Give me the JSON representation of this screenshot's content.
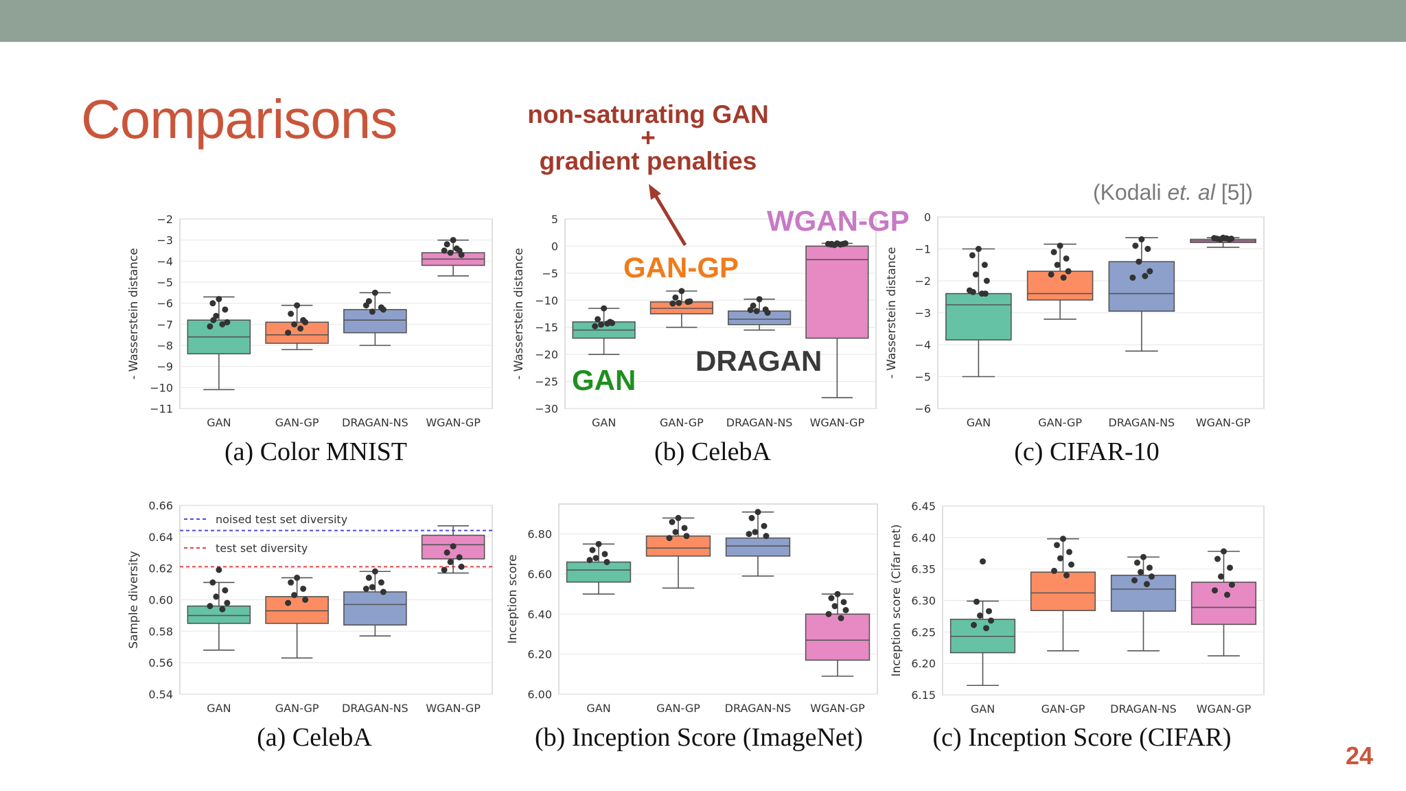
{
  "slide": {
    "title": "Comparisons",
    "citation": "(Kodali et. al [5])",
    "page_number": "24",
    "annotation_top_line1": "non-saturating GAN",
    "annotation_top_line2": "+",
    "annotation_top_line3": "gradient penalties",
    "label_gan_gp": "GAN-GP",
    "label_wgan_gp": "WGAN-GP",
    "label_dragan": "DRAGAN",
    "label_gan": "GAN",
    "colors": {
      "gan": "#66c2a5",
      "gan_gp": "#fc8d62",
      "dragan_ns": "#8da0cb",
      "wgan_gp": "#e78ac3",
      "title": "#c9553a",
      "arrow": "#a33a2c"
    }
  },
  "chart_data": [
    {
      "type": "box",
      "caption": "(a) Color MNIST",
      "ylabel": "- Wasserstein distance",
      "ylim": [
        -11,
        -2
      ],
      "yticks": [
        -2,
        -3,
        -4,
        -5,
        -6,
        -7,
        -8,
        -9,
        -10,
        -11
      ],
      "categories": [
        "GAN",
        "GAN-GP",
        "DRAGAN-NS",
        "WGAN-GP"
      ],
      "boxes": [
        {
          "min": -10.1,
          "q1": -8.4,
          "median": -7.6,
          "q3": -6.8,
          "max": -5.7,
          "points": [
            -5.8,
            -6.0,
            -6.3,
            -6.6,
            -6.9,
            -7.1,
            -7.0,
            -6.8
          ]
        },
        {
          "min": -8.2,
          "q1": -7.9,
          "median": -7.5,
          "q3": -6.9,
          "max": -6.1,
          "points": [
            -6.1,
            -6.5,
            -6.8,
            -7.0,
            -6.9,
            -7.4,
            -7.2
          ]
        },
        {
          "min": -8.0,
          "q1": -7.4,
          "median": -6.8,
          "q3": -6.3,
          "max": -5.5,
          "points": [
            -5.5,
            -5.9,
            -6.2,
            -6.4,
            -6.3,
            -6.1
          ]
        },
        {
          "min": -4.7,
          "q1": -4.2,
          "median": -3.9,
          "q3": -3.6,
          "max": -3.0,
          "points": [
            -3.0,
            -3.2,
            -3.5,
            -3.6,
            -3.7,
            -3.5,
            -3.4
          ]
        }
      ]
    },
    {
      "type": "box",
      "caption": "(b) CelebA",
      "ylabel": "- Wasserstein distance",
      "ylim": [
        -30,
        5
      ],
      "yticks": [
        5,
        0,
        -5,
        -10,
        -15,
        -20,
        -25,
        -30
      ],
      "categories": [
        "GAN",
        "GAN-GP",
        "DRAGAN-NS",
        "WGAN-GP"
      ],
      "boxes": [
        {
          "min": -20.0,
          "q1": -17.0,
          "median": -15.5,
          "q3": -14.0,
          "max": -11.5,
          "points": [
            -11.5,
            -13.5,
            -14.0,
            -14.5,
            -14.2,
            -14.8,
            -14.3
          ]
        },
        {
          "min": -15.0,
          "q1": -12.5,
          "median": -11.5,
          "q3": -10.3,
          "max": -8.3,
          "points": [
            -8.3,
            -9.5,
            -10.3,
            -10.5,
            -10.2,
            -10.6
          ]
        },
        {
          "min": -15.5,
          "q1": -14.5,
          "median": -13.5,
          "q3": -12.0,
          "max": -9.8,
          "points": [
            -9.8,
            -11.0,
            -11.7,
            -12.0,
            -12.3,
            -11.8
          ]
        },
        {
          "min": -28.0,
          "q1": -17.0,
          "median": -2.5,
          "q3": 0.0,
          "max": 0.5,
          "points": [
            0.5,
            0.3,
            0.4,
            0.2,
            0.5,
            0.4,
            0.3,
            0.4
          ]
        }
      ]
    },
    {
      "type": "box",
      "caption": "(c) CIFAR-10",
      "ylabel": "- Wasserstein distance",
      "ylim": [
        -6,
        0
      ],
      "yticks": [
        0,
        -1,
        -2,
        -3,
        -4,
        -5,
        -6
      ],
      "categories": [
        "GAN",
        "GAN-GP",
        "DRAGAN-NS",
        "WGAN-GP"
      ],
      "boxes": [
        {
          "min": -5.0,
          "q1": -3.85,
          "median": -2.75,
          "q3": -2.4,
          "max": -1.0,
          "points": [
            -1.0,
            -1.2,
            -1.5,
            -1.8,
            -2.0,
            -2.3,
            -2.4,
            -2.35,
            -2.4
          ]
        },
        {
          "min": -3.2,
          "q1": -2.6,
          "median": -2.4,
          "q3": -1.7,
          "max": -0.85,
          "points": [
            -0.9,
            -1.1,
            -1.3,
            -1.5,
            -1.7,
            -1.8,
            -1.9
          ]
        },
        {
          "min": -4.2,
          "q1": -2.95,
          "median": -2.4,
          "q3": -1.4,
          "max": -0.65,
          "points": [
            -0.7,
            -0.9,
            -1.0,
            -1.4,
            -1.7,
            -1.9,
            -1.85
          ]
        },
        {
          "min": -0.95,
          "q1": -0.8,
          "median": -0.75,
          "q3": -0.7,
          "max": -0.65,
          "points": [
            -0.65,
            -0.68,
            -0.7,
            -0.7,
            -0.68,
            -0.66,
            -0.67
          ]
        }
      ]
    },
    {
      "type": "box",
      "caption": "(a) CelebA",
      "ylabel": "Sample diversity",
      "ylim": [
        0.54,
        0.66
      ],
      "yticks": [
        0.66,
        0.64,
        0.62,
        0.6,
        0.58,
        0.56,
        0.54
      ],
      "categories": [
        "GAN",
        "GAN-GP",
        "DRAGAN-NS",
        "WGAN-GP"
      ],
      "reference_lines": [
        {
          "label": "noised test set diversity",
          "value": 0.644,
          "color": "#4a4adf"
        },
        {
          "label": "test set diversity",
          "value": 0.621,
          "color": "#e04848"
        }
      ],
      "boxes": [
        {
          "min": 0.568,
          "q1": 0.585,
          "median": 0.59,
          "q3": 0.596,
          "max": 0.611,
          "points": [
            0.619,
            0.611,
            0.606,
            0.602,
            0.598,
            0.596,
            0.594
          ]
        },
        {
          "min": 0.563,
          "q1": 0.585,
          "median": 0.593,
          "q3": 0.602,
          "max": 0.614,
          "points": [
            0.614,
            0.611,
            0.607,
            0.603,
            0.6,
            0.598
          ]
        },
        {
          "min": 0.577,
          "q1": 0.584,
          "median": 0.597,
          "q3": 0.605,
          "max": 0.618,
          "points": [
            0.618,
            0.614,
            0.611,
            0.608,
            0.605,
            0.607
          ]
        },
        {
          "min": 0.617,
          "q1": 0.626,
          "median": 0.635,
          "q3": 0.641,
          "max": 0.647,
          "points": [
            0.634,
            0.63,
            0.627,
            0.624,
            0.621,
            0.619
          ]
        }
      ]
    },
    {
      "type": "box",
      "caption": "(b) Inception Score (ImageNet)",
      "ylabel": "Inception score",
      "ylim": [
        6.0,
        6.95
      ],
      "yticks": [
        6.8,
        6.6,
        6.4,
        6.2,
        6.0
      ],
      "categories": [
        "GAN",
        "GAN-GP",
        "DRAGAN-NS",
        "WGAN-GP"
      ],
      "boxes": [
        {
          "min": 6.5,
          "q1": 6.56,
          "median": 6.62,
          "q3": 6.66,
          "max": 6.75,
          "points": [
            6.75,
            6.72,
            6.7,
            6.68,
            6.66,
            6.67
          ]
        },
        {
          "min": 6.53,
          "q1": 6.69,
          "median": 6.73,
          "q3": 6.79,
          "max": 6.88,
          "points": [
            6.88,
            6.86,
            6.83,
            6.81,
            6.79,
            6.78
          ]
        },
        {
          "min": 6.59,
          "q1": 6.69,
          "median": 6.74,
          "q3": 6.78,
          "max": 6.91,
          "points": [
            6.91,
            6.88,
            6.84,
            6.81,
            6.79,
            6.8
          ]
        },
        {
          "min": 6.09,
          "q1": 6.17,
          "median": 6.27,
          "q3": 6.4,
          "max": 6.5,
          "points": [
            6.5,
            6.48,
            6.46,
            6.44,
            6.42,
            6.4,
            6.38
          ]
        }
      ]
    },
    {
      "type": "box",
      "caption": "(c) Inception Score (CIFAR)",
      "ylabel": "Inception score (Cifar net)",
      "ylim": [
        6.15,
        6.45
      ],
      "yticks": [
        6.45,
        6.4,
        6.35,
        6.3,
        6.25,
        6.2,
        6.15
      ],
      "categories": [
        "GAN",
        "GAN-GP",
        "DRAGAN-NS",
        "WGAN-GP"
      ],
      "boxes": [
        {
          "min": 6.165,
          "q1": 6.217,
          "median": 6.243,
          "q3": 6.27,
          "max": 6.299,
          "points": [
            6.362,
            6.298,
            6.283,
            6.276,
            6.268,
            6.261,
            6.256
          ]
        },
        {
          "min": 6.22,
          "q1": 6.284,
          "median": 6.312,
          "q3": 6.345,
          "max": 6.398,
          "points": [
            6.398,
            6.388,
            6.377,
            6.367,
            6.357,
            6.347,
            6.34
          ]
        },
        {
          "min": 6.22,
          "q1": 6.283,
          "median": 6.318,
          "q3": 6.34,
          "max": 6.369,
          "points": [
            6.369,
            6.36,
            6.352,
            6.345,
            6.338,
            6.332,
            6.326
          ]
        },
        {
          "min": 6.212,
          "q1": 6.262,
          "median": 6.289,
          "q3": 6.329,
          "max": 6.378,
          "points": [
            6.378,
            6.366,
            6.352,
            6.338,
            6.325,
            6.316,
            6.309
          ]
        }
      ]
    }
  ]
}
